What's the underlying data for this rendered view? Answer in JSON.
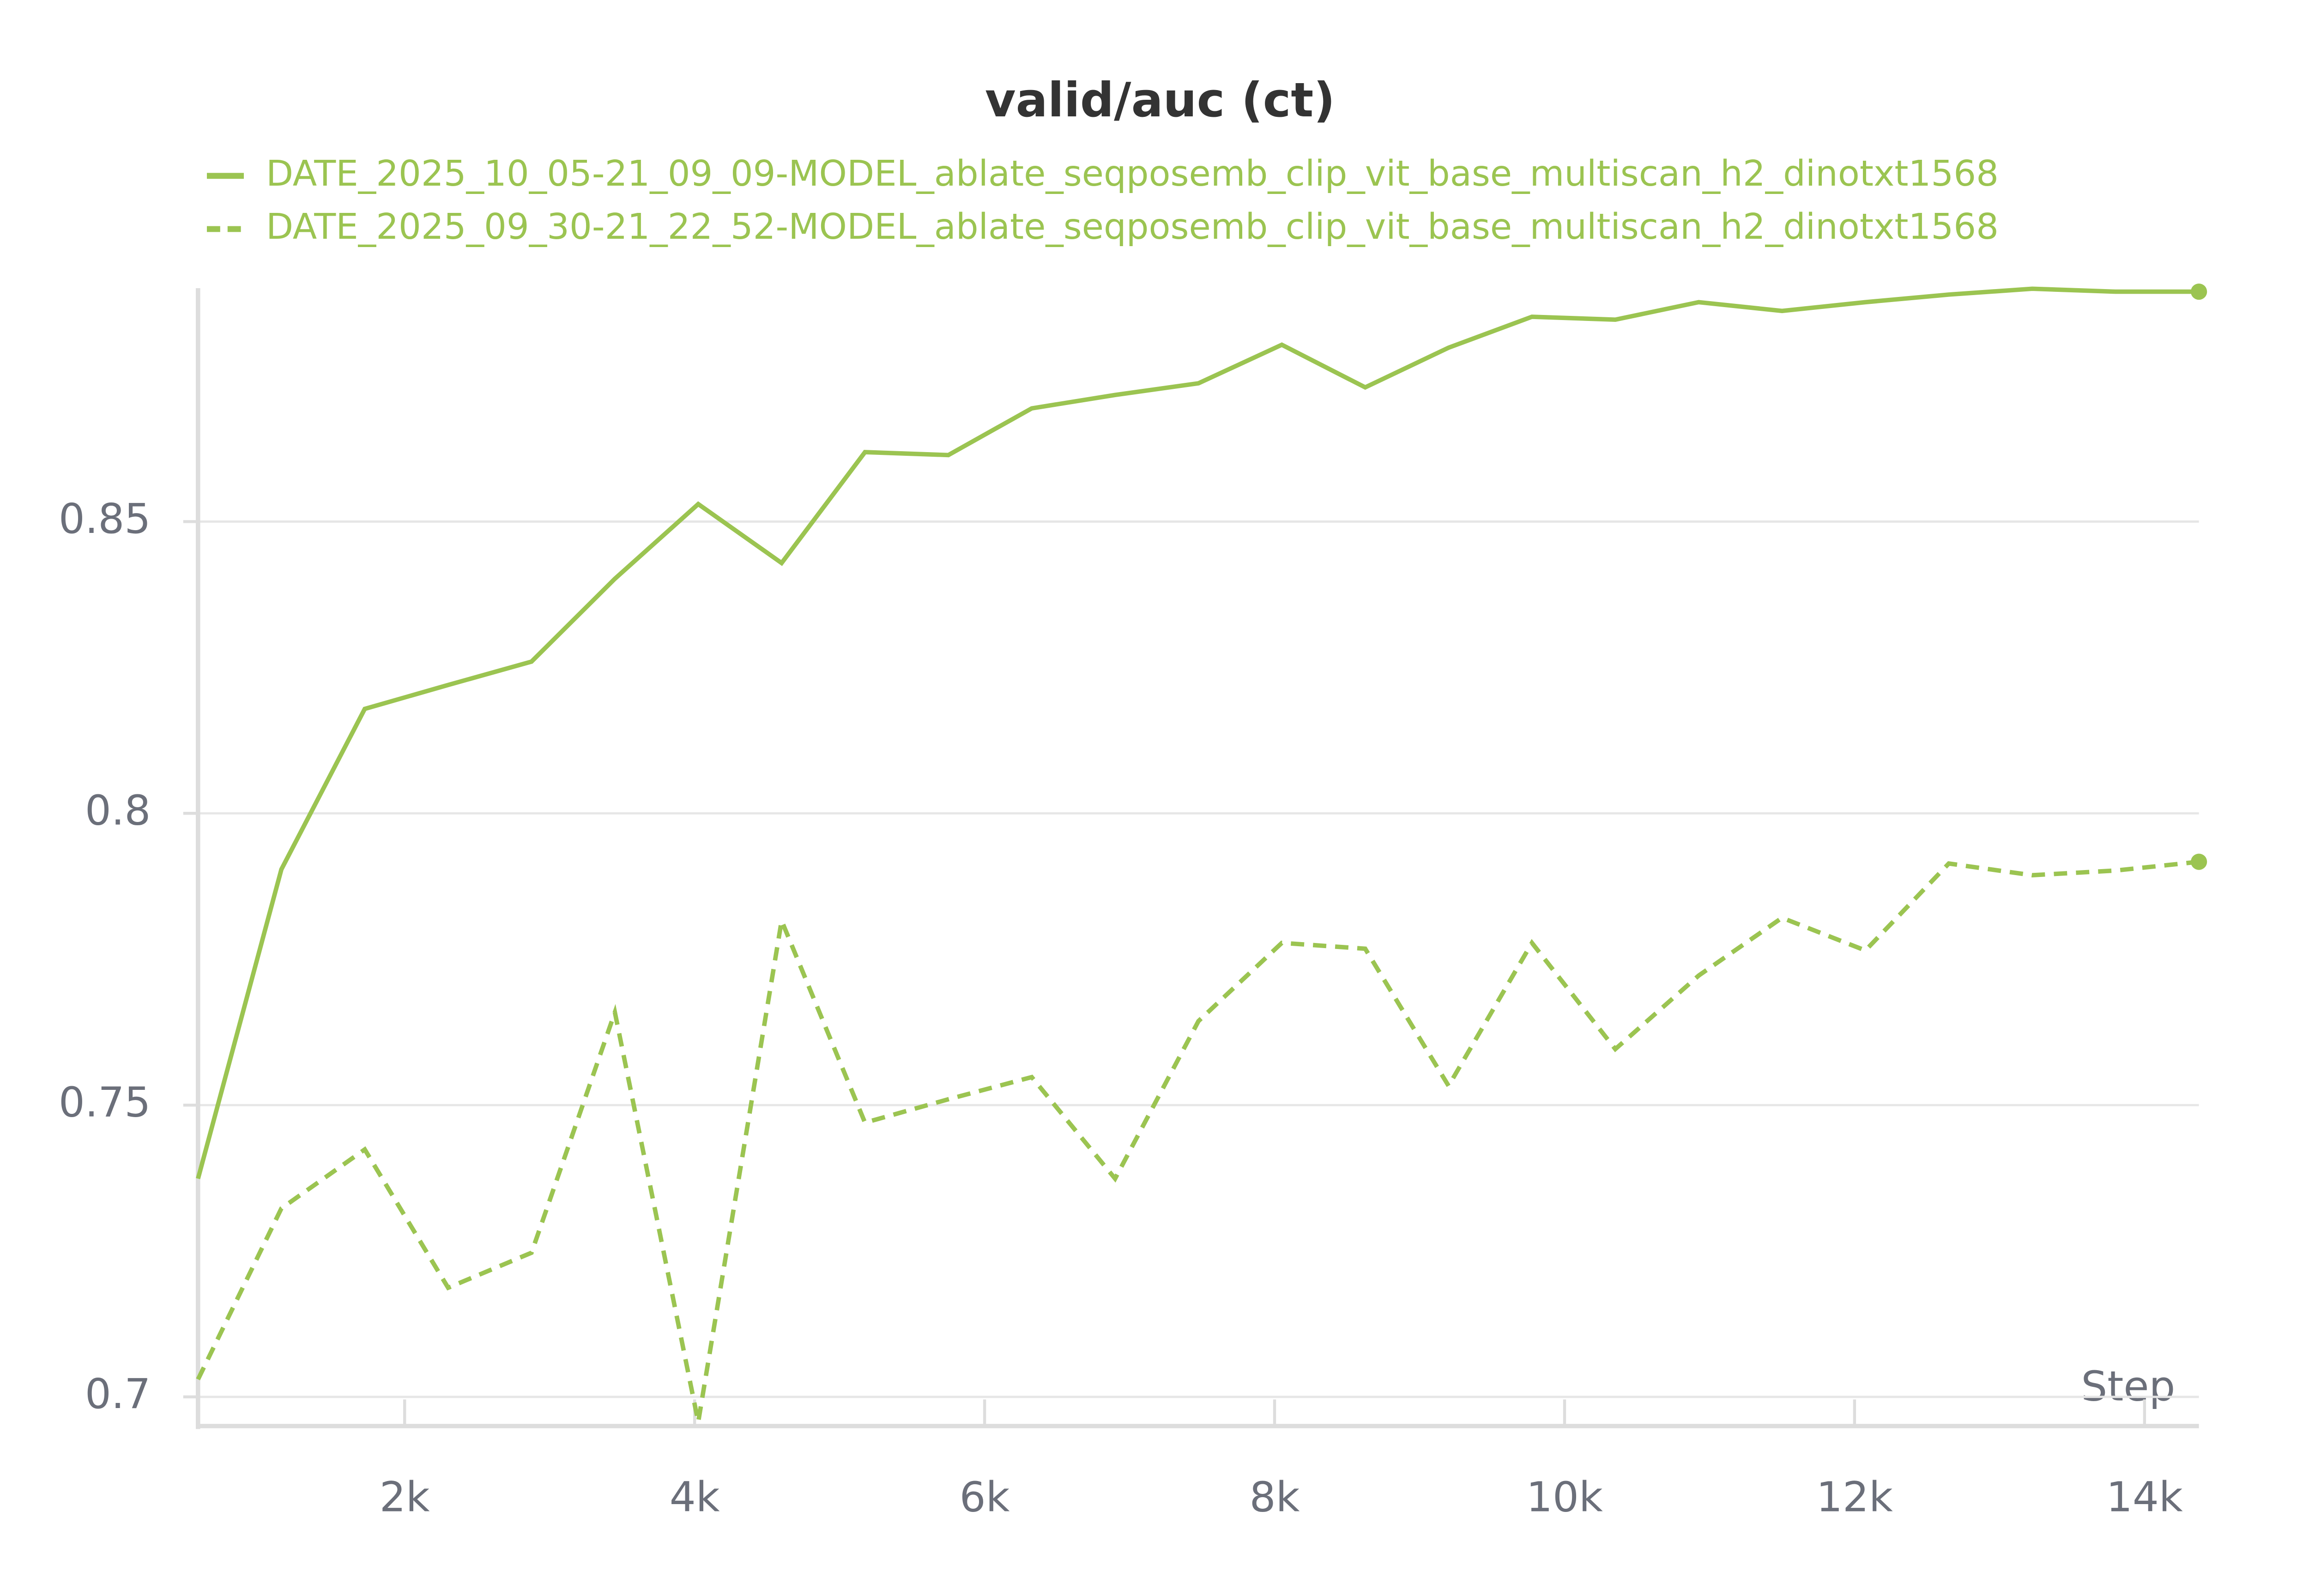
{
  "chart_data": {
    "type": "line",
    "title": "valid/auc (ct)",
    "x_label": "Step",
    "x": [
      575,
      1150,
      1725,
      2300,
      2875,
      3450,
      4025,
      4600,
      5175,
      5750,
      6325,
      6900,
      7475,
      8050,
      8625,
      9200,
      9775,
      10350,
      10925,
      11500,
      12075,
      12650,
      13225,
      13800,
      14375
    ],
    "series": [
      {
        "name": "DATE_2025_10_05-21_09_09-MODEL_ablate_seqposemb_clip_vit_base_multiscan_h2_dinotxt1568",
        "color": "#9bc451",
        "dashed": false,
        "values": [
          0.7374,
          0.7904,
          0.8179,
          0.822,
          0.826,
          0.8402,
          0.853,
          0.8429,
          0.8619,
          0.8614,
          0.8694,
          0.8717,
          0.8737,
          0.8803,
          0.873,
          0.8798,
          0.8851,
          0.8846,
          0.8876,
          0.8861,
          0.8876,
          0.8889,
          0.8899,
          0.8894,
          0.8894
        ]
      },
      {
        "name": "DATE_2025_09_30-21_22_52-MODEL_ablate_seqposemb_clip_vit_base_multiscan_h2_dinotxt1568",
        "color": "#9bc451",
        "dashed": true,
        "values": [
          0.703,
          0.7323,
          0.7424,
          0.7187,
          0.7247,
          0.7659,
          0.6957,
          0.7816,
          0.747,
          0.751,
          0.7548,
          0.7374,
          0.7644,
          0.7778,
          0.7768,
          0.7533,
          0.7778,
          0.7596,
          0.7722,
          0.7821,
          0.7765,
          0.7914,
          0.7894,
          0.7902,
          0.7917
        ]
      }
    ],
    "xlim": [
      575,
      14375
    ],
    "ylim": [
      0.695,
      0.89
    ],
    "xticks": [
      {
        "value": 2000,
        "label": "2k"
      },
      {
        "value": 4000,
        "label": "4k"
      },
      {
        "value": 6000,
        "label": "6k"
      },
      {
        "value": 8000,
        "label": "8k"
      },
      {
        "value": 10000,
        "label": "10k"
      },
      {
        "value": 12000,
        "label": "12k"
      },
      {
        "value": 14000,
        "label": "14k"
      }
    ],
    "yticks": [
      0.7,
      0.75,
      0.8,
      0.85
    ],
    "grid": true
  }
}
